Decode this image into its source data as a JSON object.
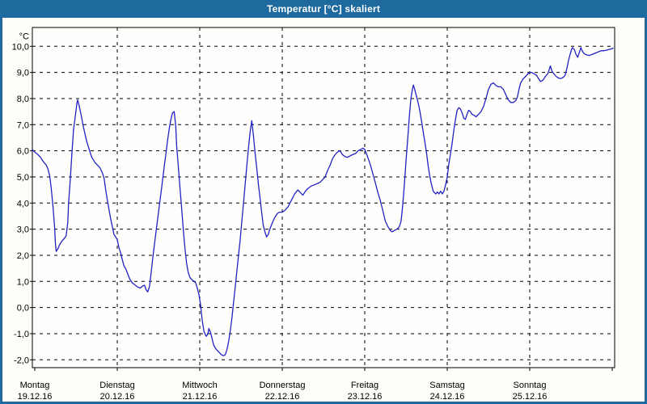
{
  "window": {
    "title": "Temperatur [°C] skaliert"
  },
  "colors": {
    "titlebar": "#1E6A9E",
    "frame": "#1E6A9E",
    "background": "#FDFDFA",
    "plot_background": "#FEFEFC",
    "line": "#2222C4",
    "grid": "#000000",
    "axis_text": "#000000",
    "title_text": "#FFFFFF"
  },
  "chart_data": {
    "type": "line",
    "title": "Temperatur [°C] skaliert",
    "xlabel": "",
    "ylabel": "°C",
    "grid": true,
    "legend_position": "none",
    "xlim": [
      -0.03,
      7.03
    ],
    "ylim": [
      -2.3,
      10.72
    ],
    "x_axis": {
      "unit": "days",
      "tick_positions": [
        0,
        1,
        2,
        3,
        4,
        5,
        6,
        7
      ],
      "ticks": [
        {
          "day": "Montag",
          "date": "19.12.16"
        },
        {
          "day": "Dienstag",
          "date": "20.12.16"
        },
        {
          "day": "Mittwoch",
          "date": "21.12.16"
        },
        {
          "day": "Donnerstag",
          "date": "22.12.16"
        },
        {
          "day": "Freitag",
          "date": "23.12.16"
        },
        {
          "day": "Samstag",
          "date": "24.12.16"
        },
        {
          "day": "Sonntag",
          "date": "25.12.16"
        }
      ]
    },
    "y_axis": {
      "min": -2,
      "max": 10,
      "step": 1,
      "tick_values": [
        10,
        9,
        8,
        7,
        6,
        5,
        4,
        3,
        2,
        1,
        0,
        -1,
        -2
      ],
      "tick_labels": [
        "10,0",
        "9,0",
        "8,0",
        "7,0",
        "6,0",
        "5,0",
        "4,0",
        "3,0",
        "2,0",
        "1,0",
        "0,0",
        "-1,0",
        "-2,0"
      ]
    },
    "series": [
      {
        "name": "Temperatur [°C]",
        "color": "#2222C4",
        "points": [
          [
            -0.03,
            6.05
          ],
          [
            0.0,
            5.95
          ],
          [
            0.04,
            5.85
          ],
          [
            0.07,
            5.75
          ],
          [
            0.1,
            5.6
          ],
          [
            0.14,
            5.45
          ],
          [
            0.16,
            5.3
          ],
          [
            0.18,
            5.05
          ],
          [
            0.2,
            4.55
          ],
          [
            0.22,
            3.9
          ],
          [
            0.24,
            3.1
          ],
          [
            0.25,
            2.45
          ],
          [
            0.26,
            2.15
          ],
          [
            0.28,
            2.25
          ],
          [
            0.3,
            2.4
          ],
          [
            0.33,
            2.55
          ],
          [
            0.36,
            2.65
          ],
          [
            0.38,
            2.75
          ],
          [
            0.4,
            3.25
          ],
          [
            0.41,
            4.0
          ],
          [
            0.43,
            4.9
          ],
          [
            0.45,
            5.9
          ],
          [
            0.47,
            6.8
          ],
          [
            0.49,
            7.3
          ],
          [
            0.51,
            7.8
          ],
          [
            0.52,
            7.95
          ],
          [
            0.54,
            7.7
          ],
          [
            0.56,
            7.4
          ],
          [
            0.59,
            6.9
          ],
          [
            0.63,
            6.35
          ],
          [
            0.66,
            6.05
          ],
          [
            0.69,
            5.75
          ],
          [
            0.73,
            5.55
          ],
          [
            0.76,
            5.45
          ],
          [
            0.79,
            5.35
          ],
          [
            0.82,
            5.15
          ],
          [
            0.84,
            4.95
          ],
          [
            0.86,
            4.5
          ],
          [
            0.88,
            4.1
          ],
          [
            0.9,
            3.75
          ],
          [
            0.92,
            3.4
          ],
          [
            0.94,
            3.1
          ],
          [
            0.96,
            2.8
          ],
          [
            0.98,
            2.7
          ],
          [
            1.0,
            2.6
          ],
          [
            1.02,
            2.3
          ],
          [
            1.04,
            2.1
          ],
          [
            1.06,
            1.85
          ],
          [
            1.08,
            1.6
          ],
          [
            1.1,
            1.5
          ],
          [
            1.12,
            1.35
          ],
          [
            1.15,
            1.1
          ],
          [
            1.18,
            0.95
          ],
          [
            1.22,
            0.85
          ],
          [
            1.25,
            0.78
          ],
          [
            1.28,
            0.75
          ],
          [
            1.31,
            0.83
          ],
          [
            1.33,
            0.85
          ],
          [
            1.35,
            0.68
          ],
          [
            1.37,
            0.6
          ],
          [
            1.39,
            0.8
          ],
          [
            1.41,
            1.3
          ],
          [
            1.43,
            1.9
          ],
          [
            1.45,
            2.4
          ],
          [
            1.47,
            2.9
          ],
          [
            1.49,
            3.4
          ],
          [
            1.51,
            3.9
          ],
          [
            1.53,
            4.4
          ],
          [
            1.55,
            4.9
          ],
          [
            1.57,
            5.4
          ],
          [
            1.59,
            5.9
          ],
          [
            1.61,
            6.4
          ],
          [
            1.63,
            6.85
          ],
          [
            1.65,
            7.2
          ],
          [
            1.67,
            7.45
          ],
          [
            1.69,
            7.5
          ],
          [
            1.71,
            6.9
          ],
          [
            1.72,
            6.2
          ],
          [
            1.74,
            5.4
          ],
          [
            1.76,
            4.6
          ],
          [
            1.78,
            3.8
          ],
          [
            1.8,
            3.0
          ],
          [
            1.82,
            2.3
          ],
          [
            1.84,
            1.7
          ],
          [
            1.86,
            1.35
          ],
          [
            1.88,
            1.15
          ],
          [
            1.91,
            1.05
          ],
          [
            1.93,
            1.0
          ],
          [
            1.95,
            0.95
          ],
          [
            1.97,
            0.75
          ],
          [
            1.99,
            0.5
          ],
          [
            2.01,
            0.1
          ],
          [
            2.03,
            -0.5
          ],
          [
            2.05,
            -0.9
          ],
          [
            2.07,
            -1.05
          ],
          [
            2.08,
            -1.1
          ],
          [
            2.1,
            -1.0
          ],
          [
            2.11,
            -0.8
          ],
          [
            2.13,
            -0.95
          ],
          [
            2.15,
            -1.2
          ],
          [
            2.17,
            -1.45
          ],
          [
            2.2,
            -1.6
          ],
          [
            2.23,
            -1.7
          ],
          [
            2.26,
            -1.8
          ],
          [
            2.29,
            -1.85
          ],
          [
            2.31,
            -1.8
          ],
          [
            2.33,
            -1.6
          ],
          [
            2.35,
            -1.3
          ],
          [
            2.37,
            -0.9
          ],
          [
            2.39,
            -0.4
          ],
          [
            2.41,
            0.2
          ],
          [
            2.43,
            0.8
          ],
          [
            2.45,
            1.4
          ],
          [
            2.47,
            2.0
          ],
          [
            2.49,
            2.6
          ],
          [
            2.51,
            3.3
          ],
          [
            2.53,
            4.0
          ],
          [
            2.55,
            4.7
          ],
          [
            2.57,
            5.4
          ],
          [
            2.59,
            6.1
          ],
          [
            2.61,
            6.7
          ],
          [
            2.63,
            7.15
          ],
          [
            2.65,
            6.6
          ],
          [
            2.67,
            5.95
          ],
          [
            2.69,
            5.35
          ],
          [
            2.71,
            4.75
          ],
          [
            2.73,
            4.2
          ],
          [
            2.75,
            3.65
          ],
          [
            2.77,
            3.15
          ],
          [
            2.79,
            2.9
          ],
          [
            2.81,
            2.7
          ],
          [
            2.83,
            2.8
          ],
          [
            2.85,
            3.0
          ],
          [
            2.88,
            3.25
          ],
          [
            2.91,
            3.45
          ],
          [
            2.94,
            3.6
          ],
          [
            2.97,
            3.65
          ],
          [
            3.0,
            3.65
          ],
          [
            3.03,
            3.72
          ],
          [
            3.07,
            3.85
          ],
          [
            3.11,
            4.1
          ],
          [
            3.15,
            4.35
          ],
          [
            3.19,
            4.5
          ],
          [
            3.22,
            4.4
          ],
          [
            3.25,
            4.3
          ],
          [
            3.28,
            4.45
          ],
          [
            3.31,
            4.55
          ],
          [
            3.35,
            4.65
          ],
          [
            3.39,
            4.7
          ],
          [
            3.43,
            4.75
          ],
          [
            3.46,
            4.8
          ],
          [
            3.49,
            4.9
          ],
          [
            3.52,
            5.0
          ],
          [
            3.55,
            5.25
          ],
          [
            3.58,
            5.45
          ],
          [
            3.61,
            5.7
          ],
          [
            3.64,
            5.85
          ],
          [
            3.67,
            5.95
          ],
          [
            3.7,
            6.0
          ],
          [
            3.73,
            5.85
          ],
          [
            3.76,
            5.78
          ],
          [
            3.79,
            5.75
          ],
          [
            3.82,
            5.8
          ],
          [
            3.85,
            5.85
          ],
          [
            3.89,
            5.9
          ],
          [
            3.92,
            6.0
          ],
          [
            3.95,
            6.05
          ],
          [
            3.98,
            6.1
          ],
          [
            4.0,
            6.05
          ],
          [
            4.02,
            5.9
          ],
          [
            4.04,
            5.72
          ],
          [
            4.07,
            5.45
          ],
          [
            4.1,
            5.1
          ],
          [
            4.13,
            4.75
          ],
          [
            4.16,
            4.4
          ],
          [
            4.19,
            4.08
          ],
          [
            4.22,
            3.7
          ],
          [
            4.25,
            3.3
          ],
          [
            4.28,
            3.1
          ],
          [
            4.31,
            2.95
          ],
          [
            4.33,
            2.9
          ],
          [
            4.36,
            2.95
          ],
          [
            4.39,
            3.0
          ],
          [
            4.42,
            3.1
          ],
          [
            4.44,
            3.3
          ],
          [
            4.46,
            3.9
          ],
          [
            4.48,
            4.7
          ],
          [
            4.5,
            5.6
          ],
          [
            4.52,
            6.4
          ],
          [
            4.54,
            7.3
          ],
          [
            4.56,
            8.0
          ],
          [
            4.58,
            8.4
          ],
          [
            4.59,
            8.52
          ],
          [
            4.61,
            8.3
          ],
          [
            4.63,
            8.05
          ],
          [
            4.65,
            7.8
          ],
          [
            4.67,
            7.5
          ],
          [
            4.69,
            7.1
          ],
          [
            4.71,
            6.7
          ],
          [
            4.73,
            6.3
          ],
          [
            4.75,
            5.9
          ],
          [
            4.77,
            5.4
          ],
          [
            4.79,
            5.0
          ],
          [
            4.81,
            4.7
          ],
          [
            4.83,
            4.45
          ],
          [
            4.86,
            4.35
          ],
          [
            4.88,
            4.42
          ],
          [
            4.9,
            4.35
          ],
          [
            4.92,
            4.45
          ],
          [
            4.94,
            4.35
          ],
          [
            4.96,
            4.45
          ],
          [
            4.98,
            4.7
          ],
          [
            5.0,
            5.0
          ],
          [
            5.02,
            5.5
          ],
          [
            5.04,
            5.9
          ],
          [
            5.06,
            6.3
          ],
          [
            5.08,
            6.8
          ],
          [
            5.1,
            7.2
          ],
          [
            5.12,
            7.55
          ],
          [
            5.14,
            7.65
          ],
          [
            5.16,
            7.6
          ],
          [
            5.18,
            7.45
          ],
          [
            5.2,
            7.25
          ],
          [
            5.22,
            7.2
          ],
          [
            5.24,
            7.4
          ],
          [
            5.26,
            7.55
          ],
          [
            5.28,
            7.5
          ],
          [
            5.3,
            7.4
          ],
          [
            5.33,
            7.35
          ],
          [
            5.35,
            7.3
          ],
          [
            5.38,
            7.4
          ],
          [
            5.41,
            7.5
          ],
          [
            5.44,
            7.7
          ],
          [
            5.47,
            8.0
          ],
          [
            5.5,
            8.35
          ],
          [
            5.53,
            8.55
          ],
          [
            5.56,
            8.6
          ],
          [
            5.59,
            8.5
          ],
          [
            5.62,
            8.45
          ],
          [
            5.65,
            8.45
          ],
          [
            5.68,
            8.35
          ],
          [
            5.71,
            8.15
          ],
          [
            5.74,
            7.95
          ],
          [
            5.77,
            7.85
          ],
          [
            5.8,
            7.85
          ],
          [
            5.83,
            7.92
          ],
          [
            5.85,
            8.05
          ],
          [
            5.87,
            8.35
          ],
          [
            5.89,
            8.6
          ],
          [
            5.92,
            8.75
          ],
          [
            5.95,
            8.85
          ],
          [
            5.98,
            8.95
          ],
          [
            6.0,
            9.0
          ],
          [
            6.02,
            9.0
          ],
          [
            6.05,
            8.95
          ],
          [
            6.08,
            8.9
          ],
          [
            6.1,
            8.8
          ],
          [
            6.13,
            8.65
          ],
          [
            6.16,
            8.7
          ],
          [
            6.19,
            8.85
          ],
          [
            6.22,
            8.95
          ],
          [
            6.24,
            9.15
          ],
          [
            6.25,
            9.25
          ],
          [
            6.27,
            9.05
          ],
          [
            6.29,
            8.95
          ],
          [
            6.32,
            8.85
          ],
          [
            6.35,
            8.78
          ],
          [
            6.38,
            8.77
          ],
          [
            6.41,
            8.82
          ],
          [
            6.43,
            8.9
          ],
          [
            6.45,
            9.15
          ],
          [
            6.47,
            9.45
          ],
          [
            6.49,
            9.7
          ],
          [
            6.51,
            9.9
          ],
          [
            6.52,
            9.95
          ],
          [
            6.54,
            9.88
          ],
          [
            6.56,
            9.7
          ],
          [
            6.58,
            9.58
          ],
          [
            6.6,
            9.75
          ],
          [
            6.62,
            9.95
          ],
          [
            6.64,
            9.8
          ],
          [
            6.66,
            9.72
          ],
          [
            6.69,
            9.67
          ],
          [
            6.72,
            9.65
          ],
          [
            6.75,
            9.68
          ],
          [
            6.78,
            9.72
          ],
          [
            6.81,
            9.76
          ],
          [
            6.84,
            9.8
          ],
          [
            6.87,
            9.83
          ],
          [
            6.9,
            9.83
          ],
          [
            6.93,
            9.85
          ],
          [
            6.96,
            9.88
          ],
          [
            6.99,
            9.9
          ],
          [
            7.01,
            9.93
          ]
        ]
      }
    ]
  }
}
